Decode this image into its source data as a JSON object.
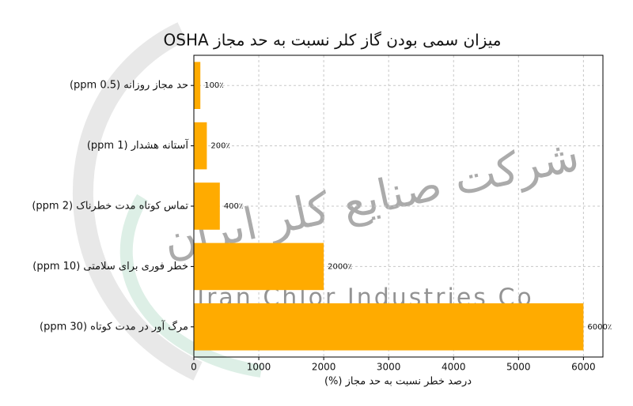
{
  "chart_data": {
    "type": "barh",
    "title": "میزان سمی بودن گاز کلر نسبت به حد مجاز OSHA",
    "xlabel": "درصد خطر نسبت به حد مجاز (%)",
    "categories": [
      "حد مجاز روزانه (0.5 ppm)",
      "آستانه هشدار  (1 ppm)",
      "تماس کوتاه مدت خطرناک (2 ppm)",
      "خطر فوری برای سلامتی (10 ppm)",
      "مرگ آور در مدت کوتاه (30 ppm)"
    ],
    "values": [
      100,
      200,
      400,
      2000,
      6000
    ],
    "value_labels": [
      "100٪",
      "200٪",
      "400٪",
      "2000٪",
      "6000٪"
    ],
    "color": "#ffab00",
    "xlim": [
      0,
      6300
    ],
    "xticks": [
      0,
      1000,
      2000,
      3000,
      4000,
      5000,
      6000
    ],
    "grid": true,
    "watermark": [
      "شرکت صنایع کلر ایران",
      "Iran Chlor Industries Co"
    ]
  }
}
